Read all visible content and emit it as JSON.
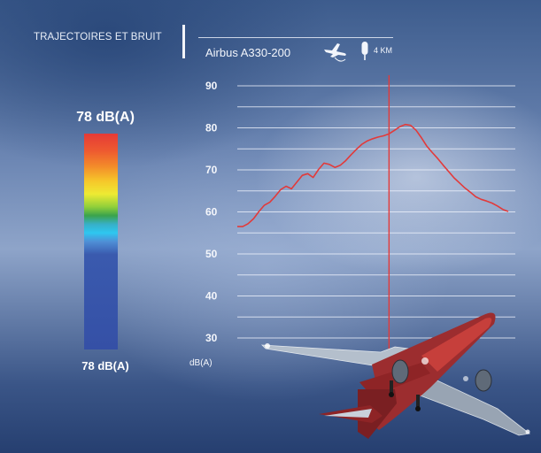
{
  "header": {
    "title": "TRAJECTOIRES ET BRUIT",
    "aircraft": "Airbus A330-200",
    "distance": "4 KM",
    "icons": [
      "airplane-takeoff-icon",
      "microphone-icon"
    ]
  },
  "level_meter": {
    "top_label": "78 dB(A)",
    "bottom_label": "78 dB(A)",
    "colors": [
      "#e53a36",
      "#f38a2a",
      "#eeea33",
      "#3aa34c",
      "#2ec7f0",
      "#3550a6"
    ]
  },
  "chart_data": {
    "type": "line",
    "ylabel": "dB(A)",
    "ylim": [
      25,
      92
    ],
    "yticks": [
      30,
      40,
      50,
      60,
      70,
      80,
      90
    ],
    "grid": true,
    "marker_color": "#e23a3a",
    "line_color": "#e23a3a",
    "series": [
      {
        "values": [
          56.5,
          56.5,
          57.2,
          58.4,
          60.1,
          61.6,
          62.3,
          63.7,
          65.3,
          66.1,
          65.5,
          67.1,
          68.7,
          69.1,
          68.2,
          70.1,
          71.6,
          71.3,
          70.6,
          71.1,
          72.2,
          73.6,
          74.9,
          76.1,
          76.9,
          77.4,
          77.8,
          78.1,
          78.6,
          79.4,
          80.3,
          80.8,
          80.6,
          79.4,
          77.6,
          75.6,
          74.1,
          72.7,
          71.1,
          69.6,
          68.1,
          66.9,
          65.7,
          64.7,
          63.6,
          63.0,
          62.6,
          62.1,
          61.4,
          60.6,
          60.1
        ]
      }
    ],
    "marker_index": 28
  }
}
